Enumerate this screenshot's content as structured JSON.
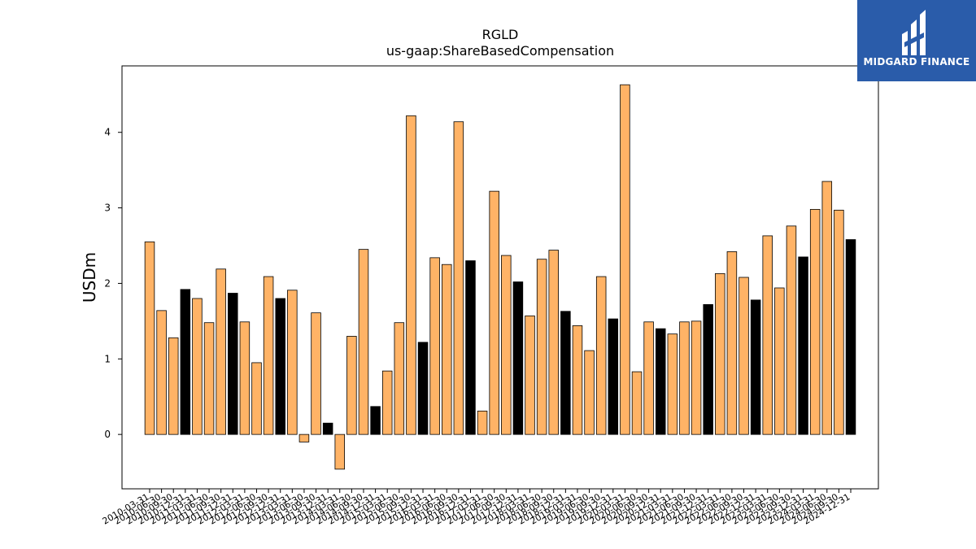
{
  "logo": {
    "text": "MIDGARD FINANCE",
    "icon": "midgard-logo-icon",
    "background": "#2a5caa"
  },
  "colors": {
    "annual": "#000000",
    "quarter": "#ffb366",
    "edge": "#000000"
  },
  "chart_data": {
    "type": "bar",
    "title": "RGLD",
    "subtitle": "us-gaap:ShareBasedCompensation",
    "xlabel": "",
    "ylabel": "USDm",
    "ylim": [
      -0.72,
      4.88
    ],
    "yticks": [
      0,
      1,
      2,
      3,
      4
    ],
    "grid": false,
    "categories": [
      "2010-03-31",
      "2010-06-30",
      "2010-09-30",
      "2010-12-31",
      "2011-03-31",
      "2011-06-30",
      "2011-09-30",
      "2011-12-31",
      "2012-03-31",
      "2012-06-30",
      "2012-09-30",
      "2012-12-31",
      "2013-03-31",
      "2013-06-30",
      "2013-09-30",
      "2013-12-31",
      "2014-03-31",
      "2014-06-30",
      "2014-09-30",
      "2014-12-31",
      "2015-03-31",
      "2015-06-30",
      "2015-09-30",
      "2015-12-31",
      "2016-03-31",
      "2016-06-30",
      "2016-09-30",
      "2016-12-31",
      "2017-03-31",
      "2017-06-30",
      "2017-09-30",
      "2017-12-31",
      "2018-03-31",
      "2018-06-30",
      "2018-09-30",
      "2018-12-31",
      "2019-03-31",
      "2019-06-30",
      "2019-09-30",
      "2019-12-31",
      "2020-03-31",
      "2020-06-30",
      "2020-09-30",
      "2020-12-31",
      "2021-03-31",
      "2021-06-30",
      "2021-09-30",
      "2021-12-31",
      "2022-03-31",
      "2022-06-30",
      "2022-09-30",
      "2022-12-31",
      "2023-03-31",
      "2023-06-30",
      "2023-09-30",
      "2023-12-31",
      "2024-03-31",
      "2024-06-30",
      "2024-09-30",
      "2024-12-31"
    ],
    "values": [
      2.55,
      1.64,
      1.28,
      1.92,
      1.8,
      1.48,
      2.19,
      1.87,
      1.49,
      0.95,
      2.09,
      1.8,
      1.91,
      -0.1,
      1.61,
      0.15,
      -0.46,
      1.3,
      2.45,
      0.37,
      0.84,
      1.48,
      4.22,
      1.22,
      2.34,
      2.25,
      4.14,
      2.3,
      0.31,
      3.22,
      2.37,
      2.02,
      1.57,
      2.32,
      2.44,
      1.63,
      1.44,
      1.11,
      2.09,
      1.53,
      4.63,
      0.83,
      1.49,
      1.4,
      1.33,
      1.49,
      1.5,
      1.72,
      2.13,
      2.42,
      2.08,
      1.78,
      2.63,
      1.94,
      2.76,
      2.35,
      2.98,
      3.35,
      2.97,
      2.58
    ],
    "annual": [
      false,
      false,
      false,
      true,
      false,
      false,
      false,
      true,
      false,
      false,
      false,
      true,
      false,
      false,
      false,
      true,
      false,
      false,
      false,
      true,
      false,
      false,
      false,
      true,
      false,
      false,
      false,
      true,
      false,
      false,
      false,
      true,
      false,
      false,
      false,
      true,
      false,
      false,
      false,
      true,
      false,
      false,
      false,
      true,
      false,
      false,
      false,
      true,
      false,
      false,
      false,
      true,
      false,
      false,
      false,
      true,
      false,
      false,
      false,
      true
    ]
  }
}
